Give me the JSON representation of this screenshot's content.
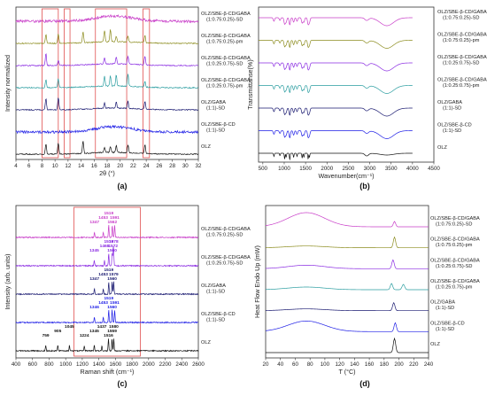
{
  "panels": {
    "a": {
      "label": "(a)"
    },
    "b": {
      "label": "(b)"
    },
    "c": {
      "label": "(c)"
    },
    "d": {
      "label": "(d)"
    }
  },
  "chart_data": [
    {
      "id": "a",
      "type": "line",
      "xlabel": "2θ (°)",
      "ylabel": "Intensity normalized",
      "xlim": [
        4,
        32
      ],
      "xticks": [
        "4",
        "6",
        "8",
        "10",
        "12",
        "14",
        "16",
        "18",
        "20",
        "22",
        "24",
        "26",
        "28",
        "30",
        "32"
      ],
      "highlight_ranges": [
        [
          8,
          10.5
        ],
        [
          11.4,
          12.3
        ],
        [
          16.2,
          21
        ],
        [
          23.5,
          24.5
        ]
      ],
      "series": [
        {
          "name": "OLZ/SBE-β-CD/GABA (1:0.75:0.25)-SD",
          "color": "#c83cc8",
          "peaks": []
        },
        {
          "name": "OLZ/SBE-β-CD/GABA (1:0.75:0.25)-pm",
          "color": "#8c8c1e",
          "peaks": [
            8.6,
            10.5,
            14.3,
            17.6,
            18.5,
            19.4,
            21.2,
            23.8
          ]
        },
        {
          "name": "OLZ/SBE-β-CD/GABA (1:0.25:0.75)-SD",
          "color": "#8a2be2",
          "peaks": [
            8.6,
            10.5,
            17.6,
            19.4,
            21.2,
            23.8
          ]
        },
        {
          "name": "OLZ/SBE-β-CD/GABA (1:0.25:0.75)-pm",
          "color": "#2a9da0",
          "peaks": [
            8.6,
            10.5,
            17.6,
            18.5,
            19.4,
            21.2,
            23.8
          ]
        },
        {
          "name": "OLZ/GABA (1:1)-SD",
          "color": "#191970",
          "peaks": [
            8.6,
            10.5,
            17.6,
            19.4,
            21.2,
            23.8
          ]
        },
        {
          "name": "OLZ/SBE-β-CD (1:1)-SD",
          "color": "#1e1ee6",
          "peaks": []
        },
        {
          "name": "OLZ",
          "color": "#111111",
          "peaks": [
            8.6,
            10.5,
            14.3,
            17.6,
            18.5,
            19.4,
            21.2,
            23.8
          ]
        }
      ]
    },
    {
      "id": "b",
      "type": "line",
      "xlabel": "Wavenumber(cm⁻¹)",
      "ylabel": "Transmittanse(%)",
      "xlim": [
        400,
        4500
      ],
      "xticks": [
        "500",
        "1000",
        "1500",
        "2000",
        "2500",
        "3000",
        "3500",
        "4000",
        "4500"
      ],
      "series": [
        {
          "name": "OLZ/SBE-β-CD/GABA (1:0.75:0.25)-SD",
          "color": "#c83cc8"
        },
        {
          "name": "OLZ/SBE-β-CD/GABA (1:0.75:0.25)-pm",
          "color": "#8c8c1e"
        },
        {
          "name": "OLZ/SBE-β-CD/GABA (1:0.25:0.75)-SD",
          "color": "#8a2be2"
        },
        {
          "name": "OLZ/SBE-β-CD/GABA (1:0.25:0.75)-pm",
          "color": "#2a9da0"
        },
        {
          "name": "OLZ/GABA (1:1)-SD",
          "color": "#191970"
        },
        {
          "name": "OLZ/SBE-β-CD (1:1)-SD",
          "color": "#1e1ee6"
        },
        {
          "name": "OLZ",
          "color": "#111111"
        }
      ]
    },
    {
      "id": "c",
      "type": "line",
      "xlabel": "Raman shift (cm⁻¹)",
      "ylabel": "Intensity (arb. units)",
      "xlim": [
        400,
        2600
      ],
      "xticks": [
        "400",
        "600",
        "800",
        "1000",
        "1200",
        "1400",
        "1600",
        "1800",
        "2000",
        "2200",
        "2400",
        "2600"
      ],
      "highlight_ranges": [
        [
          1100,
          1900
        ]
      ],
      "series": [
        {
          "name": "OLZ/SBE-β-CD/GABA (1:0.75:0.25)-SD",
          "color": "#c83cc8",
          "peak_labels": [
            "1347",
            "1453",
            "1519",
            "1562",
            "1591"
          ]
        },
        {
          "name": "OLZ/SBE-β-CD/GABA (1:0.25:0.75)-SD",
          "color": "#8a2be2",
          "peak_labels": [
            "1345",
            "1468",
            "1519",
            "1560",
            "1572",
            "1578"
          ]
        },
        {
          "name": "OLZ/GABA (1:1)-SD",
          "color": "#191970",
          "peak_labels": [
            "1347",
            "1453",
            "1519",
            "1560",
            "1579"
          ]
        },
        {
          "name": "OLZ/SBE-β-CD (1:1)-SD",
          "color": "#1e1ee6",
          "peak_labels": [
            "1346",
            "1453",
            "1519",
            "1560",
            "1591"
          ]
        },
        {
          "name": "OLZ",
          "color": "#111111",
          "peak_labels": [
            "759",
            "905",
            "1045",
            "1224",
            "1345",
            "1437",
            "1516",
            "1559",
            "1580"
          ]
        }
      ]
    },
    {
      "id": "d",
      "type": "line",
      "xlabel": "T (°C)",
      "ylabel": "Heat Flow Endo Up (mW)",
      "xlim": [
        20,
        240
      ],
      "xticks": [
        "20",
        "40",
        "60",
        "80",
        "100",
        "120",
        "140",
        "160",
        "180",
        "200",
        "220",
        "240"
      ],
      "series": [
        {
          "name": "OLZ/SBE-β-CD/GABA (1:0.75:0.25)-SD",
          "color": "#c83cc8"
        },
        {
          "name": "OLZ/SBE-β-CD/GABA (1:0.75:0.25)-pm",
          "color": "#8c8c1e"
        },
        {
          "name": "OLZ/SBE-β-CD/GABA (1:0.25:0.75)-SD",
          "color": "#8a2be2"
        },
        {
          "name": "OLZ/SBE-β-CD/GABA (1:0.25:0.75)-pm",
          "color": "#2a9da0"
        },
        {
          "name": "OLZ/GABA (1:1)-SD",
          "color": "#191970"
        },
        {
          "name": "OLZ/SBE-β-CD (1:1)-SD",
          "color": "#1e1ee6"
        },
        {
          "name": "OLZ",
          "color": "#111111"
        }
      ]
    }
  ]
}
